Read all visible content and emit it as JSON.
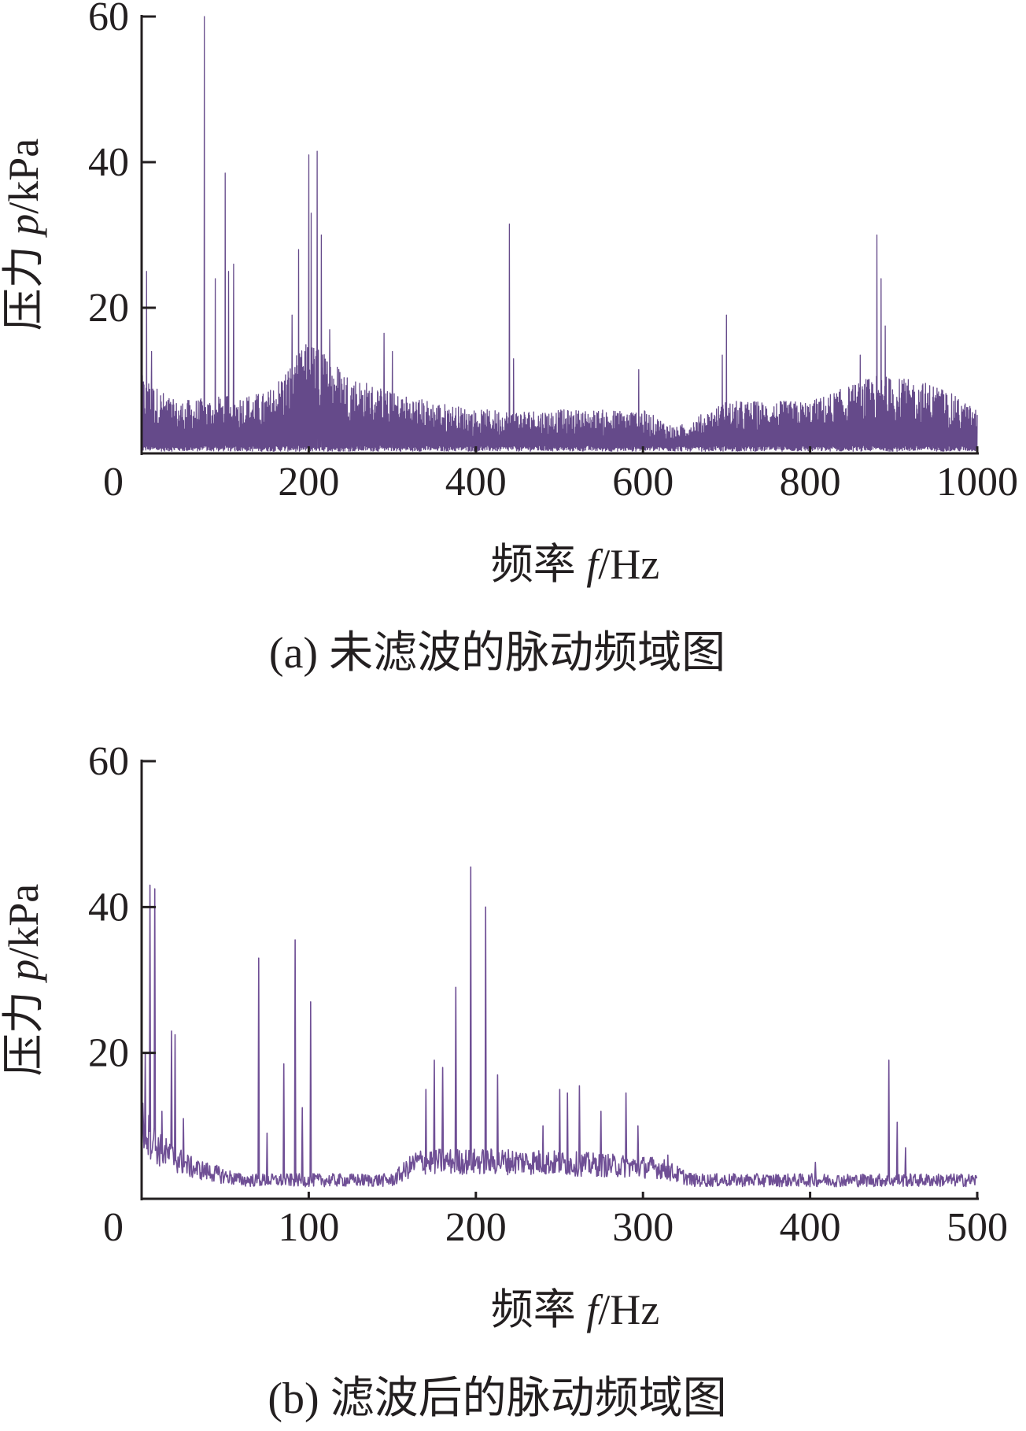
{
  "chart_data": [
    {
      "type": "line",
      "title": "",
      "caption": "(a) 未滤波的脉动频域图",
      "xlabel_prefix": "频率 ",
      "xlabel_var": "f",
      "xlabel_unit": "/Hz",
      "ylabel_prefix": "压力 ",
      "ylabel_var": "p",
      "ylabel_unit": "/kPa",
      "xlim": [
        0,
        1000
      ],
      "ylim": [
        0,
        60
      ],
      "xticks": [
        0,
        200,
        400,
        600,
        800,
        1000
      ],
      "yticks": [
        20,
        40,
        60
      ],
      "xtick_labels": [
        "0",
        "200",
        "400",
        "600",
        "800",
        "1000"
      ],
      "ytick_labels": [
        "20",
        "40",
        "60"
      ],
      "grid": false,
      "color": "#654a8a",
      "style": "dense",
      "noise_envelope": [
        [
          0,
          9
        ],
        [
          40,
          6
        ],
        [
          150,
          7
        ],
        [
          200,
          13
        ],
        [
          250,
          9
        ],
        [
          300,
          7
        ],
        [
          400,
          5
        ],
        [
          600,
          5
        ],
        [
          640,
          3
        ],
        [
          700,
          6
        ],
        [
          800,
          6
        ],
        [
          880,
          9
        ],
        [
          950,
          8
        ],
        [
          1000,
          5
        ]
      ],
      "peaks": [
        [
          6,
          25
        ],
        [
          12,
          14
        ],
        [
          75,
          60
        ],
        [
          88,
          24
        ],
        [
          100,
          38.5
        ],
        [
          104,
          25
        ],
        [
          110,
          26
        ],
        [
          180,
          19
        ],
        [
          188,
          28
        ],
        [
          200,
          41
        ],
        [
          203,
          33
        ],
        [
          210,
          41.5
        ],
        [
          215,
          30
        ],
        [
          225,
          17
        ],
        [
          290,
          16.5
        ],
        [
          300,
          14
        ],
        [
          440,
          31.5
        ],
        [
          445,
          13
        ],
        [
          595,
          11.5
        ],
        [
          695,
          13.5
        ],
        [
          700,
          19
        ],
        [
          860,
          13.5
        ],
        [
          880,
          30
        ],
        [
          885,
          24
        ],
        [
          890,
          17.5
        ],
        [
          910,
          10
        ]
      ]
    },
    {
      "type": "line",
      "title": "",
      "caption": "(b) 滤波后的脉动频域图",
      "xlabel_prefix": "频率 ",
      "xlabel_var": "f",
      "xlabel_unit": "/Hz",
      "ylabel_prefix": "压力 ",
      "ylabel_var": "p",
      "ylabel_unit": "/kPa",
      "xlim": [
        0,
        500
      ],
      "ylim": [
        0,
        60
      ],
      "xticks": [
        0,
        100,
        200,
        300,
        400,
        500
      ],
      "yticks": [
        20,
        40,
        60
      ],
      "xtick_labels": [
        "0",
        "100",
        "200",
        "300",
        "400",
        "500"
      ],
      "ytick_labels": [
        "20",
        "40",
        "60"
      ],
      "grid": false,
      "color": "#6f4f95",
      "style": "thin",
      "noise_envelope": [
        [
          0,
          12
        ],
        [
          10,
          8
        ],
        [
          30,
          5
        ],
        [
          60,
          3
        ],
        [
          150,
          3
        ],
        [
          165,
          6
        ],
        [
          230,
          6
        ],
        [
          310,
          5
        ],
        [
          330,
          3
        ],
        [
          500,
          3
        ]
      ],
      "peaks": [
        [
          2,
          20
        ],
        [
          5,
          43
        ],
        [
          8,
          42.5
        ],
        [
          12,
          12
        ],
        [
          18,
          23
        ],
        [
          20,
          22.5
        ],
        [
          25,
          11
        ],
        [
          70,
          33
        ],
        [
          75,
          9
        ],
        [
          85,
          18.5
        ],
        [
          92,
          35.5
        ],
        [
          96,
          12.5
        ],
        [
          101,
          27
        ],
        [
          170,
          15
        ],
        [
          175,
          19
        ],
        [
          180,
          18
        ],
        [
          188,
          29
        ],
        [
          197,
          45.5
        ],
        [
          206,
          40
        ],
        [
          213,
          17
        ],
        [
          240,
          10
        ],
        [
          250,
          15
        ],
        [
          255,
          14.5
        ],
        [
          262,
          15.5
        ],
        [
          275,
          12
        ],
        [
          290,
          14.5
        ],
        [
          297,
          10
        ],
        [
          315,
          6
        ],
        [
          403,
          5
        ],
        [
          447,
          19
        ],
        [
          452,
          10.5
        ],
        [
          457,
          7
        ]
      ]
    }
  ]
}
